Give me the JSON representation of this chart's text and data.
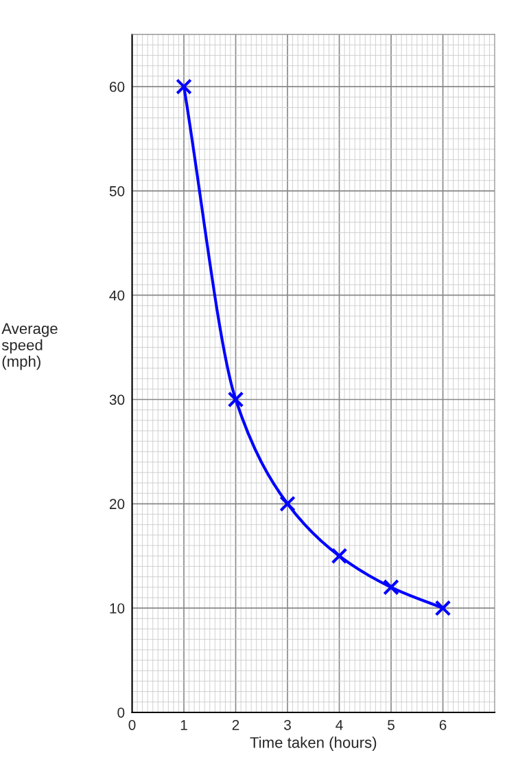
{
  "chart_data": {
    "type": "line",
    "xlabel": "Time taken (hours)",
    "ylabel": "Average\nspeed\n(mph)",
    "x": [
      1,
      2,
      3,
      4,
      5,
      6
    ],
    "series": [
      {
        "color": "#0000ff",
        "values": [
          60,
          30,
          20,
          15,
          12,
          10
        ]
      }
    ],
    "marker": "cross",
    "grid": true,
    "xlim": [
      0,
      7
    ],
    "ylim": [
      0,
      65
    ],
    "xticks": [
      0,
      1,
      2,
      3,
      4,
      5,
      6
    ],
    "yticks": [
      0,
      10,
      20,
      30,
      40,
      50,
      60
    ]
  }
}
